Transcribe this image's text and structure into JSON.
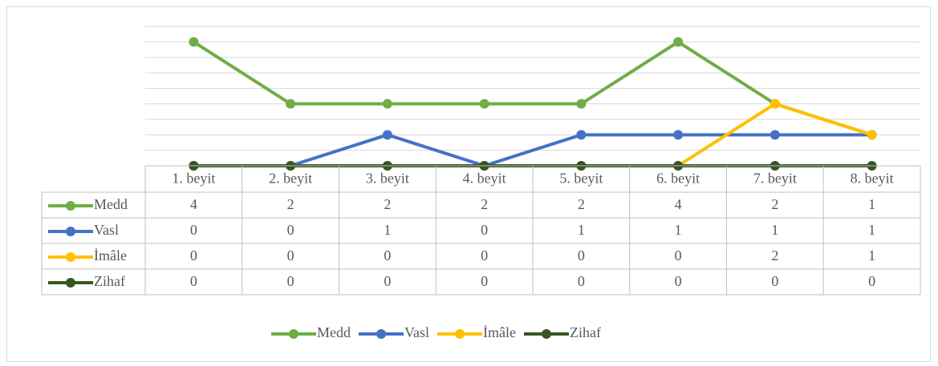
{
  "chart_data": {
    "type": "line",
    "categories": [
      "1. beyit",
      "2. beyit",
      "3. beyit",
      "4. beyit",
      "5. beyit",
      "6. beyit",
      "7. beyit",
      "8. beyit"
    ],
    "series": [
      {
        "name": "Medd",
        "color": "#70ad47",
        "values": [
          4,
          2,
          2,
          2,
          2,
          4,
          2,
          1
        ]
      },
      {
        "name": "Vasl",
        "color": "#4472c4",
        "values": [
          0,
          0,
          1,
          0,
          1,
          1,
          1,
          1
        ]
      },
      {
        "name": "İmâle",
        "color": "#ffc000",
        "values": [
          0,
          0,
          0,
          0,
          0,
          0,
          2,
          1
        ]
      },
      {
        "name": "Zihaf",
        "color": "#375623",
        "values": [
          0,
          0,
          0,
          0,
          0,
          0,
          0,
          0
        ]
      }
    ],
    "ylim": [
      0,
      4.5
    ],
    "yticks": [
      0,
      0.5,
      1,
      1.5,
      2,
      2.5,
      3,
      3.5,
      4,
      4.5
    ],
    "grid": true,
    "data_table": true,
    "legend": "bottom"
  }
}
